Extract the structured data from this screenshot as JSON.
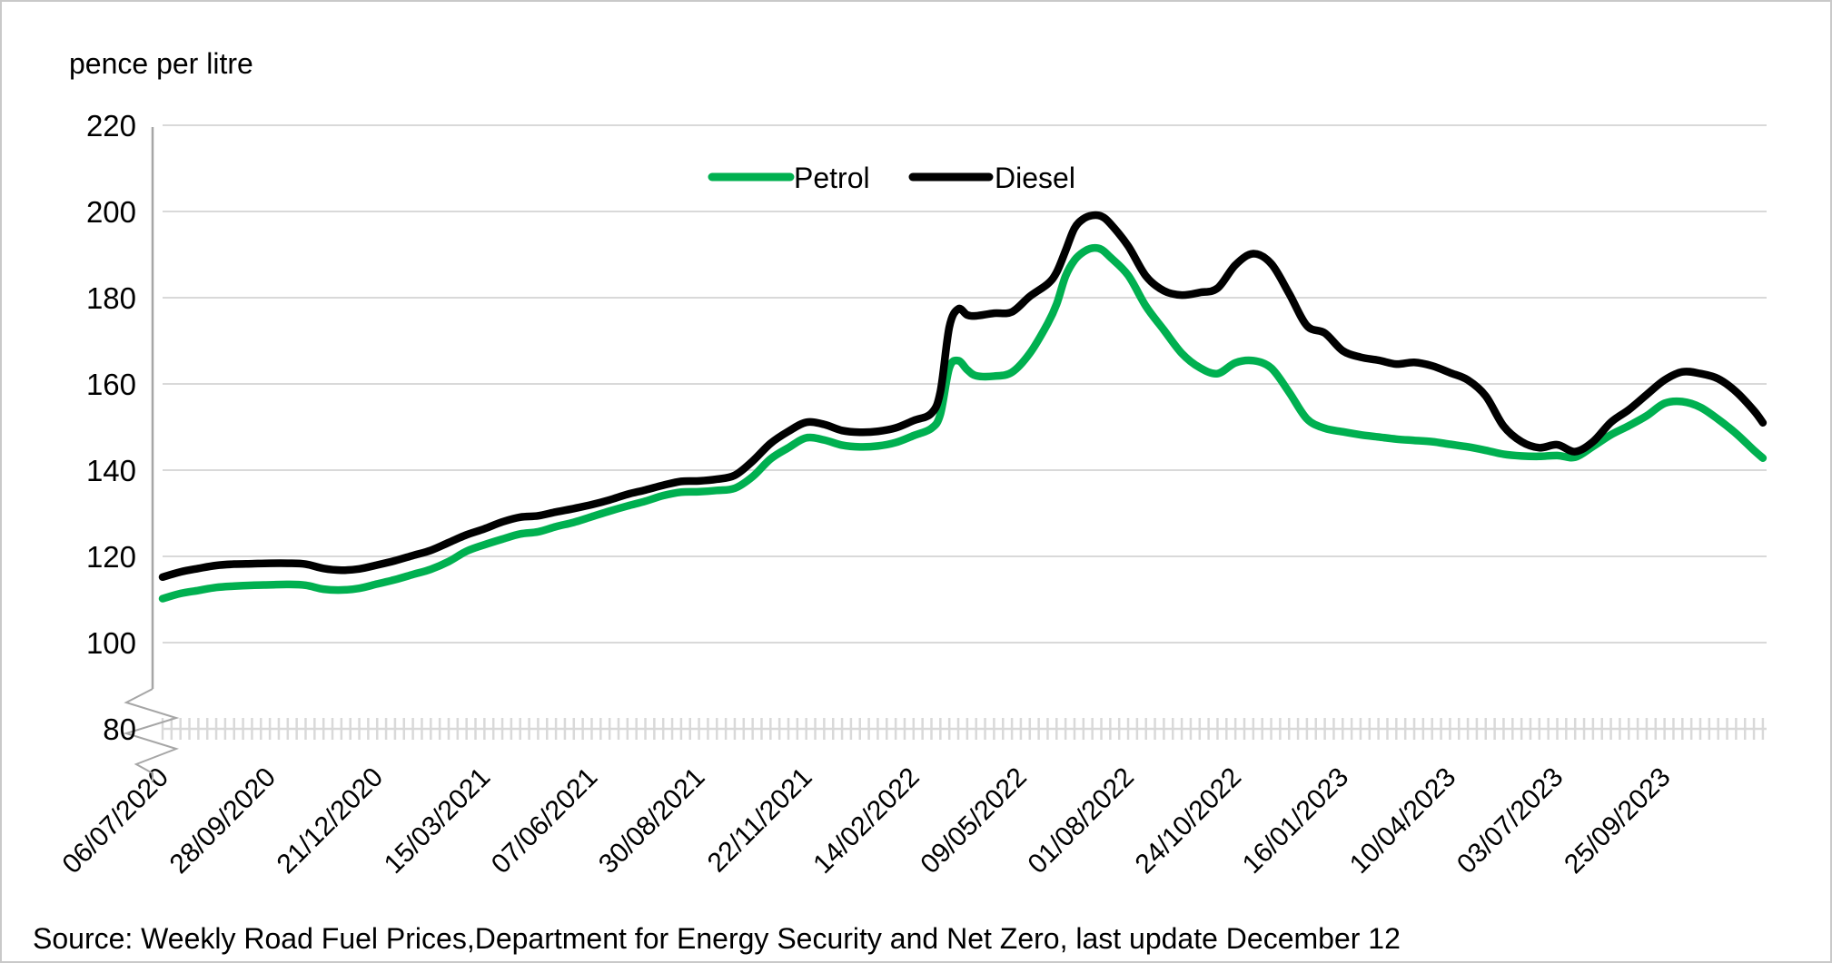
{
  "title": "pence per litre",
  "legend": [
    {
      "label": "Petrol",
      "color": "#00B050"
    },
    {
      "label": "Diesel",
      "color": "#000000"
    }
  ],
  "source": "Source: Weekly Road Fuel Prices,Department for Energy Security and Net Zero, last update December 12",
  "colors": {
    "gridline": "#d9d9d9",
    "axis": "#a6a6a6",
    "petrol": "#00B050",
    "diesel": "#000000"
  },
  "y_axis": {
    "title": "pence per litre",
    "tick_labels": [
      "220",
      "200",
      "180",
      "160",
      "140",
      "120",
      "100",
      "80"
    ],
    "tick_values": [
      220,
      200,
      180,
      160,
      140,
      120,
      100,
      80
    ],
    "has_break_below": 80
  },
  "x_axis": {
    "tick_labels": [
      "06/07/2020",
      "28/09/2020",
      "21/12/2020",
      "15/03/2021",
      "07/06/2021",
      "30/08/2021",
      "22/11/2021",
      "14/02/2022",
      "09/05/2022",
      "01/08/2022",
      "24/10/2022",
      "16/01/2023",
      "10/04/2023",
      "03/07/2023",
      "25/09/2023"
    ],
    "minor_tick_unit": "week"
  },
  "chart_data": {
    "type": "line",
    "title": "",
    "ylabel": "pence per litre",
    "xlabel": "",
    "ylim": [
      80,
      220
    ],
    "y_break_below": 80,
    "grid": "horizontal",
    "legend_position": "top-center",
    "x": [
      "06/07/2020",
      "20/07/2020",
      "03/08/2020",
      "17/08/2020",
      "31/08/2020",
      "14/09/2020",
      "28/09/2020",
      "12/10/2020",
      "26/10/2020",
      "09/11/2020",
      "23/11/2020",
      "07/12/2020",
      "21/12/2020",
      "04/01/2021",
      "18/01/2021",
      "01/02/2021",
      "15/02/2021",
      "01/03/2021",
      "15/03/2021",
      "29/03/2021",
      "12/04/2021",
      "26/04/2021",
      "10/05/2021",
      "24/05/2021",
      "07/06/2021",
      "21/06/2021",
      "05/07/2021",
      "19/07/2021",
      "02/08/2021",
      "16/08/2021",
      "30/08/2021",
      "13/09/2021",
      "27/09/2021",
      "11/10/2021",
      "25/10/2021",
      "08/11/2021",
      "22/11/2021",
      "06/12/2021",
      "20/12/2021",
      "03/01/2022",
      "17/01/2022",
      "31/01/2022",
      "14/02/2022",
      "28/02/2022",
      "07/03/2022",
      "14/03/2022",
      "21/03/2022",
      "28/03/2022",
      "04/04/2022",
      "18/04/2022",
      "02/05/2022",
      "16/05/2022",
      "30/05/2022",
      "06/06/2022",
      "13/06/2022",
      "20/06/2022",
      "27/06/2022",
      "04/07/2022",
      "11/07/2022",
      "18/07/2022",
      "01/08/2022",
      "15/08/2022",
      "29/08/2022",
      "12/09/2022",
      "26/09/2022",
      "10/10/2022",
      "24/10/2022",
      "07/11/2022",
      "21/11/2022",
      "05/12/2022",
      "19/12/2022",
      "02/01/2023",
      "16/01/2023",
      "30/01/2023",
      "13/02/2023",
      "27/02/2023",
      "13/03/2023",
      "27/03/2023",
      "10/04/2023",
      "24/04/2023",
      "08/05/2023",
      "22/05/2023",
      "05/06/2023",
      "19/06/2023",
      "03/07/2023",
      "17/07/2023",
      "31/07/2023",
      "14/08/2023",
      "28/08/2023",
      "11/09/2023",
      "25/09/2023",
      "09/10/2023",
      "23/10/2023",
      "06/11/2023",
      "20/11/2023",
      "04/12/2023",
      "11/12/2023"
    ],
    "series": [
      {
        "name": "Petrol",
        "color": "#00B050",
        "values": [
          110.2,
          111.4,
          112.1,
          112.8,
          113.1,
          113.3,
          113.4,
          113.5,
          113.3,
          112.4,
          112.2,
          112.6,
          113.6,
          114.6,
          115.8,
          117.0,
          118.8,
          121.2,
          122.7,
          124.0,
          125.2,
          125.7,
          126.9,
          127.9,
          129.2,
          130.5,
          131.7,
          132.8,
          134.1,
          134.9,
          135.0,
          135.3,
          135.8,
          138.5,
          142.6,
          145.2,
          147.5,
          147.0,
          145.8,
          145.4,
          145.6,
          146.4,
          148.0,
          149.7,
          153.0,
          163.7,
          165.4,
          163.3,
          161.9,
          161.8,
          162.7,
          167.1,
          174.0,
          178.5,
          185.0,
          188.7,
          190.6,
          191.5,
          191.2,
          189.4,
          185.2,
          178.0,
          172.5,
          167.1,
          163.8,
          162.4,
          164.9,
          165.4,
          163.7,
          158.1,
          151.9,
          149.7,
          148.9,
          148.2,
          147.7,
          147.2,
          146.9,
          146.6,
          146.0,
          145.4,
          144.6,
          143.7,
          143.3,
          143.2,
          143.4,
          143.0,
          145.5,
          148.2,
          150.3,
          152.6,
          155.5,
          155.9,
          154.6,
          151.8,
          148.5,
          144.6,
          142.8
        ]
      },
      {
        "name": "Diesel",
        "color": "#000000",
        "values": [
          115.2,
          116.4,
          117.2,
          117.9,
          118.2,
          118.3,
          118.4,
          118.4,
          118.2,
          117.2,
          116.8,
          117.1,
          118.0,
          119.0,
          120.2,
          121.4,
          123.2,
          125.0,
          126.4,
          128.0,
          129.1,
          129.4,
          130.3,
          131.1,
          132.0,
          133.1,
          134.4,
          135.4,
          136.5,
          137.4,
          137.5,
          137.9,
          138.8,
          142.1,
          146.2,
          149.0,
          151.1,
          150.6,
          149.2,
          148.8,
          149.0,
          149.8,
          151.5,
          153.2,
          158.2,
          173.2,
          177.4,
          176.0,
          175.8,
          176.4,
          176.7,
          180.3,
          183.2,
          185.9,
          190.9,
          196.1,
          198.3,
          199.1,
          198.9,
          197.2,
          192.0,
          185.0,
          181.6,
          180.6,
          181.2,
          182.2,
          187.6,
          190.2,
          187.9,
          181.0,
          173.5,
          171.8,
          167.7,
          166.2,
          165.5,
          164.6,
          165.0,
          164.2,
          162.6,
          160.9,
          157.2,
          150.2,
          146.6,
          145.2,
          145.9,
          144.3,
          146.6,
          151.1,
          154.0,
          157.5,
          160.9,
          162.8,
          162.4,
          161.2,
          158.2,
          153.8,
          151.0
        ]
      }
    ]
  }
}
